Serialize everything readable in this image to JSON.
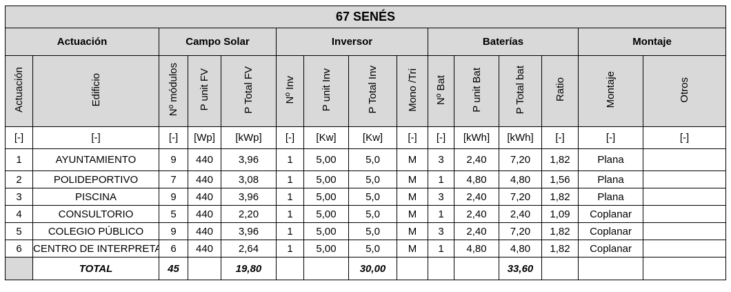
{
  "title": "67 SENÉS",
  "groups": [
    "Actuación",
    "Campo Solar",
    "Inversor",
    "Baterías",
    "Montaje"
  ],
  "columns": [
    "Actuación",
    "Edificio",
    "Nº módulos",
    "P unit FV",
    "P Total FV",
    "Nº Inv",
    "P unit Inv",
    "P Total Inv",
    "Mono /Tri",
    "Nº Bat",
    "P unit Bat",
    "P Total bat",
    "Ratio",
    "Montaje",
    "Otros"
  ],
  "units": [
    "[-]",
    "[-]",
    "[-]",
    "[Wp]",
    "[kWp]",
    "[-]",
    "[Kw]",
    "[Kw]",
    "[-]",
    "[-]",
    "[kWh]",
    "[kWh]",
    "[-]",
    "[-]",
    "[-]"
  ],
  "rows": [
    [
      "1",
      "AYUNTAMIENTO",
      "9",
      "440",
      "3,96",
      "1",
      "5,00",
      "5,0",
      "M",
      "3",
      "2,40",
      "7,20",
      "1,82",
      "Plana"
    ],
    [
      "2",
      "POLIDEPORTIVO",
      "7",
      "440",
      "3,08",
      "1",
      "5,00",
      "5,0",
      "M",
      "1",
      "4,80",
      "4,80",
      "1,56",
      "Plana"
    ],
    [
      "3",
      "PISCINA",
      "9",
      "440",
      "3,96",
      "1",
      "5,00",
      "5,0",
      "M",
      "3",
      "2,40",
      "7,20",
      "1,82",
      "Plana"
    ],
    [
      "4",
      "CONSULTORIO",
      "5",
      "440",
      "2,20",
      "1",
      "5,00",
      "5,0",
      "M",
      "1",
      "2,40",
      "2,40",
      "1,09",
      "Coplanar"
    ],
    [
      "5",
      "COLEGIO PÚBLICO",
      "9",
      "440",
      "3,96",
      "1",
      "5,00",
      "5,0",
      "M",
      "3",
      "2,40",
      "7,20",
      "1,82",
      "Coplanar"
    ],
    [
      "6",
      "CENTRO DE INTERPRETACIÓN",
      "6",
      "440",
      "2,64",
      "1",
      "5,00",
      "5,0",
      "M",
      "1",
      "4,80",
      "4,80",
      "1,82",
      "Coplanar"
    ]
  ],
  "total": {
    "label": "TOTAL",
    "n_modulos": "45",
    "p_total_fv": "19,80",
    "p_total_inv": "30,00",
    "p_total_bat": "33,60"
  }
}
